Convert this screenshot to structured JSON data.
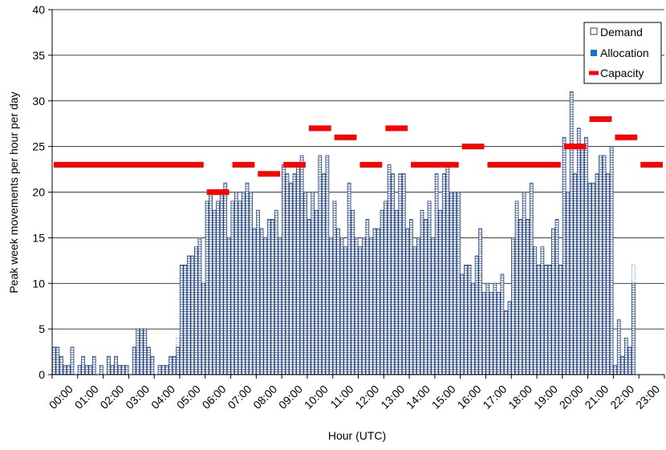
{
  "chart_data": {
    "type": "bar",
    "xlabel": "Hour (UTC)",
    "ylabel": "Peak week movements per hour per day",
    "ylim": [
      0,
      40
    ],
    "yticks": [
      0,
      5,
      10,
      15,
      20,
      25,
      30,
      35,
      40
    ],
    "hour_labels": [
      "00:00",
      "01:00",
      "02:00",
      "03:00",
      "04:00",
      "05:00",
      "06:00",
      "07:00",
      "08:00",
      "09:00",
      "10:00",
      "11:00",
      "12:00",
      "13:00",
      "14:00",
      "15:00",
      "16:00",
      "17:00",
      "18:00",
      "19:00",
      "20:00",
      "21:00",
      "22:00",
      "23:00"
    ],
    "days_per_hour": 7,
    "legend": {
      "position": "top-right",
      "entries": [
        {
          "label": "Demand",
          "marker": "hollow-square"
        },
        {
          "label": "Allocation",
          "marker": "filled-square"
        },
        {
          "label": "Capacity",
          "marker": "red-line"
        }
      ]
    },
    "colors": {
      "demand_stroke": "#1f3f7f",
      "demand_fill": "#ffffff",
      "allocation": "#1f6fbf",
      "capacity": "#ff0000"
    },
    "series": [
      {
        "name": "Demand",
        "values": [
          3,
          3,
          2,
          1,
          1,
          3,
          0,
          1,
          2,
          1,
          1,
          2,
          0,
          1,
          0,
          2,
          1,
          2,
          1,
          1,
          1,
          0,
          3,
          5,
          5,
          5,
          3,
          2,
          0,
          1,
          1,
          1,
          2,
          2,
          3,
          12,
          12,
          13,
          13,
          14,
          15,
          10,
          19,
          20,
          18,
          19,
          20,
          21,
          15,
          19,
          20,
          19,
          20,
          21,
          20,
          16,
          18,
          16,
          15,
          17,
          17,
          18,
          15,
          23,
          22,
          21,
          22,
          23,
          24,
          20,
          17,
          20,
          18,
          24,
          22,
          24,
          15,
          19,
          16,
          15,
          14,
          21,
          18,
          15,
          14,
          15,
          17,
          15,
          16,
          16,
          18,
          19,
          23,
          22,
          18,
          22,
          22,
          16,
          17,
          14,
          15,
          18,
          17,
          19,
          15,
          22,
          18,
          22,
          23,
          20,
          20,
          20,
          11,
          12,
          12,
          10,
          13,
          16,
          9,
          10,
          9,
          10,
          9,
          11,
          7,
          8,
          15,
          19,
          17,
          20,
          17,
          21,
          14,
          12,
          14,
          12,
          12,
          16,
          17,
          12,
          26,
          20,
          31,
          22,
          27,
          25,
          26,
          21,
          21,
          22,
          24,
          24,
          22,
          25,
          1,
          6,
          2,
          4,
          3,
          10,
          0
        ]
      },
      {
        "name": "Allocation",
        "values": [
          3,
          3,
          2,
          1,
          1,
          3,
          0,
          1,
          2,
          1,
          1,
          2,
          0,
          1,
          0,
          2,
          1,
          2,
          1,
          1,
          1,
          0,
          3,
          5,
          5,
          5,
          3,
          2,
          0,
          1,
          1,
          1,
          2,
          2,
          4,
          12,
          12,
          13,
          13,
          14,
          15,
          10,
          19,
          20,
          18,
          19,
          20,
          21,
          15,
          19,
          20,
          19,
          20,
          21,
          20,
          16,
          18,
          16,
          15,
          17,
          17,
          18,
          15,
          23,
          22,
          21,
          22,
          23,
          24,
          20,
          17,
          20,
          18,
          24,
          22,
          24,
          15,
          19,
          16,
          15,
          14,
          21,
          18,
          15,
          14,
          15,
          17,
          15,
          16,
          16,
          18,
          19,
          23,
          22,
          18,
          22,
          22,
          16,
          17,
          14,
          15,
          18,
          17,
          19,
          15,
          22,
          18,
          22,
          23,
          20,
          20,
          20,
          11,
          12,
          12,
          10,
          13,
          16,
          9,
          10,
          9,
          10,
          9,
          11,
          7,
          8,
          15,
          19,
          17,
          20,
          17,
          21,
          14,
          12,
          14,
          12,
          12,
          16,
          17,
          12,
          26,
          20,
          28,
          22,
          27,
          25,
          26,
          21,
          21,
          22,
          24,
          24,
          22,
          25,
          1,
          6,
          2,
          4,
          3,
          12,
          0
        ]
      },
      {
        "name": "Capacity",
        "segments": [
          {
            "start": 0,
            "end": 6,
            "value": 23
          },
          {
            "start": 6,
            "end": 7,
            "value": 20
          },
          {
            "start": 7,
            "end": 8,
            "value": 23
          },
          {
            "start": 8,
            "end": 9,
            "value": 22
          },
          {
            "start": 9,
            "end": 10,
            "value": 23
          },
          {
            "start": 10,
            "end": 11,
            "value": 27
          },
          {
            "start": 11,
            "end": 12,
            "value": 26
          },
          {
            "start": 12,
            "end": 13,
            "value": 23
          },
          {
            "start": 13,
            "end": 14,
            "value": 27
          },
          {
            "start": 14,
            "end": 16,
            "value": 23
          },
          {
            "start": 16,
            "end": 17,
            "value": 25
          },
          {
            "start": 17,
            "end": 20,
            "value": 23
          },
          {
            "start": 20,
            "end": 21,
            "value": 25
          },
          {
            "start": 21,
            "end": 22,
            "value": 28
          },
          {
            "start": 22,
            "end": 23,
            "value": 26
          },
          {
            "start": 23,
            "end": 24,
            "value": 23
          }
        ]
      }
    ]
  }
}
